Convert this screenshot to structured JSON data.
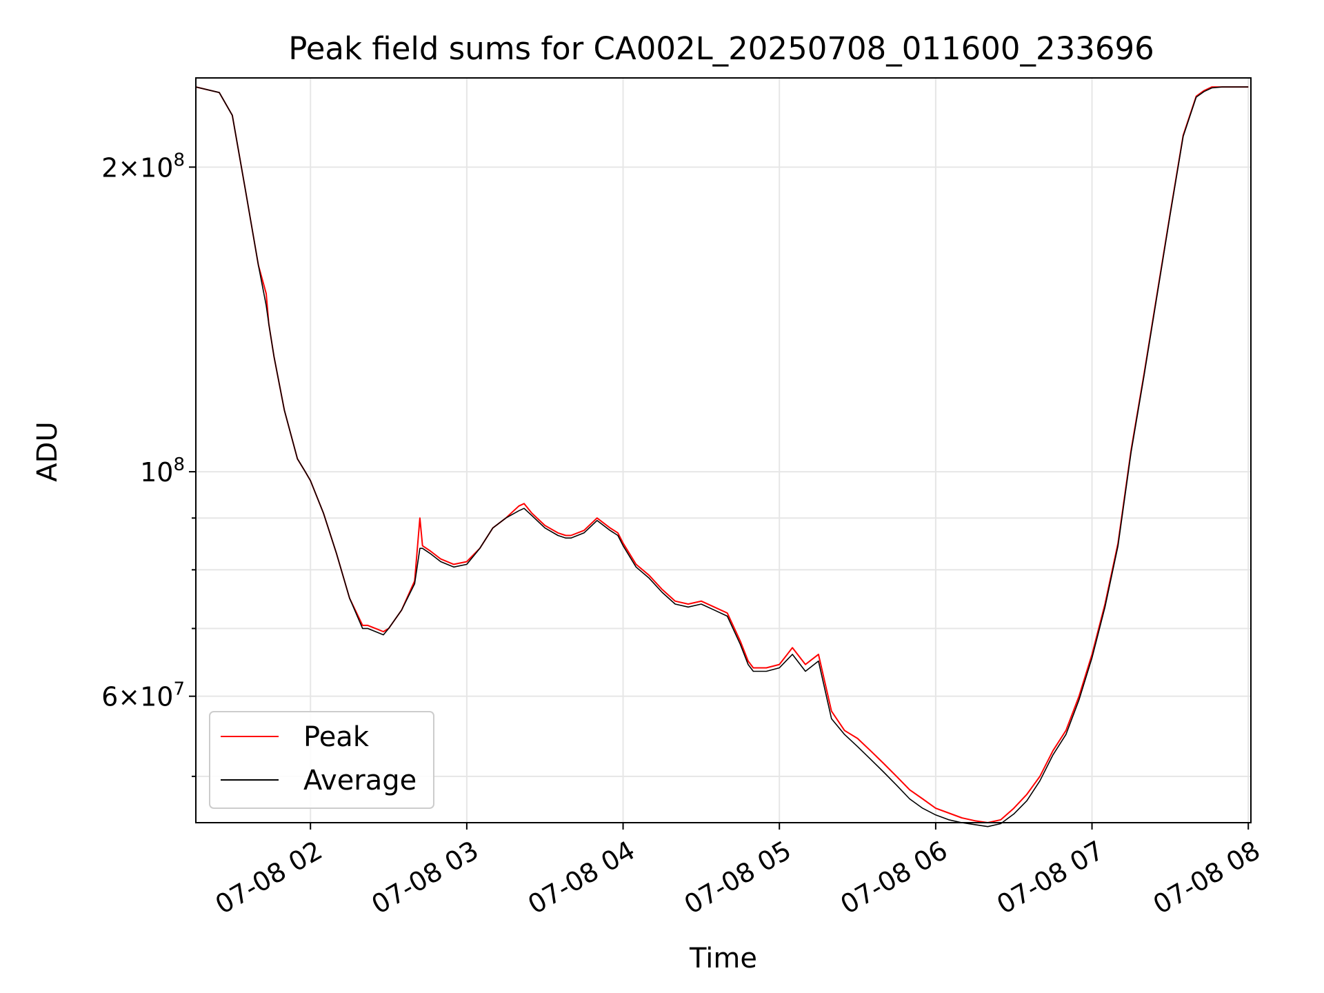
{
  "chart_data": {
    "type": "line",
    "title": "Peak field sums for CA002L_20250708_011600_233696",
    "xlabel": "Time",
    "ylabel": "ADU",
    "yscale": "log",
    "ylim": [
      45000000,
      245000000
    ],
    "xlim": [
      "07-08 01:16",
      "07-08 08:01"
    ],
    "x_tick_labels": [
      "07-08 02",
      "07-08 03",
      "07-08 04",
      "07-08 05",
      "07-08 06",
      "07-08 07",
      "07-08 08"
    ],
    "y_tick_labels": [
      {
        "base": "2",
        "exp": "8",
        "value": 200000000,
        "kind": "mantissa"
      },
      {
        "base": "10",
        "exp": "8",
        "value": 100000000,
        "kind": "power"
      },
      {
        "base": "6",
        "exp": "7",
        "value": 60000000,
        "kind": "mantissa"
      }
    ],
    "y_minor_ticks": [
      50000000,
      70000000,
      80000000,
      90000000
    ],
    "grid": true,
    "legend_position": "lower-left",
    "series": [
      {
        "name": "Peak",
        "color": "#ff0000",
        "x": [
          "01:16",
          "01:25",
          "01:30",
          "01:35",
          "01:40",
          "01:43",
          "01:44",
          "01:46",
          "01:50",
          "01:55",
          "01:58",
          "02:00",
          "02:05",
          "02:10",
          "02:15",
          "02:20",
          "02:22",
          "02:25",
          "02:28",
          "02:30",
          "02:35",
          "02:40",
          "02:42",
          "02:43",
          "02:46",
          "02:50",
          "02:55",
          "03:00",
          "03:05",
          "03:10",
          "03:15",
          "03:20",
          "03:22",
          "03:25",
          "03:30",
          "03:35",
          "03:38",
          "03:40",
          "03:45",
          "03:50",
          "03:55",
          "03:58",
          "04:00",
          "04:05",
          "04:10",
          "04:15",
          "04:20",
          "04:25",
          "04:30",
          "04:35",
          "04:40",
          "04:45",
          "04:48",
          "04:50",
          "04:55",
          "05:00",
          "05:05",
          "05:10",
          "05:15",
          "05:20",
          "05:25",
          "05:30",
          "05:35",
          "05:40",
          "05:45",
          "05:50",
          "05:55",
          "06:00",
          "06:05",
          "06:10",
          "06:15",
          "06:20",
          "06:25",
          "06:30",
          "06:35",
          "06:40",
          "06:45",
          "06:50",
          "06:55",
          "07:00",
          "07:05",
          "07:10",
          "07:15",
          "07:20",
          "07:25",
          "07:30",
          "07:35",
          "07:40",
          "07:43",
          "07:46",
          "07:50",
          "08:00"
        ],
        "values": [
          240000000,
          237000000,
          225000000,
          190000000,
          160000000,
          150000000,
          140000000,
          130000000,
          115000000,
          103000000,
          100000000,
          98000000,
          91000000,
          83000000,
          75000000,
          70500000,
          70500000,
          70000000,
          69500000,
          70000000,
          73000000,
          78000000,
          90000000,
          84500000,
          83500000,
          82000000,
          81000000,
          81500000,
          84000000,
          88000000,
          90000000,
          92500000,
          93000000,
          91000000,
          88500000,
          87000000,
          86500000,
          86500000,
          87500000,
          90000000,
          88000000,
          87000000,
          85000000,
          81000000,
          79000000,
          76500000,
          74500000,
          74000000,
          74500000,
          73500000,
          72500000,
          68000000,
          65000000,
          64000000,
          64000000,
          64500000,
          67000000,
          64500000,
          66000000,
          58000000,
          55500000,
          54500000,
          53000000,
          51500000,
          50000000,
          48500000,
          47500000,
          46500000,
          46000000,
          45500000,
          45200000,
          45000000,
          45300000,
          46500000,
          48000000,
          50000000,
          53000000,
          55500000,
          60000000,
          66000000,
          74000000,
          85000000,
          105000000,
          125000000,
          150000000,
          180000000,
          215000000,
          235000000,
          238000000,
          240000000,
          240000000,
          240000000
        ]
      },
      {
        "name": "Average",
        "color": "#000000",
        "x": [
          "01:16",
          "01:25",
          "01:30",
          "01:35",
          "01:40",
          "01:43",
          "01:44",
          "01:46",
          "01:50",
          "01:55",
          "01:58",
          "02:00",
          "02:05",
          "02:10",
          "02:15",
          "02:20",
          "02:22",
          "02:25",
          "02:28",
          "02:30",
          "02:35",
          "02:40",
          "02:42",
          "02:43",
          "02:46",
          "02:50",
          "02:55",
          "03:00",
          "03:05",
          "03:10",
          "03:15",
          "03:20",
          "03:22",
          "03:25",
          "03:30",
          "03:35",
          "03:38",
          "03:40",
          "03:45",
          "03:50",
          "03:55",
          "03:58",
          "04:00",
          "04:05",
          "04:10",
          "04:15",
          "04:20",
          "04:25",
          "04:30",
          "04:35",
          "04:40",
          "04:45",
          "04:48",
          "04:50",
          "04:55",
          "05:00",
          "05:05",
          "05:10",
          "05:15",
          "05:20",
          "05:25",
          "05:30",
          "05:35",
          "05:40",
          "05:45",
          "05:50",
          "05:55",
          "06:00",
          "06:05",
          "06:10",
          "06:15",
          "06:20",
          "06:25",
          "06:30",
          "06:35",
          "06:40",
          "06:45",
          "06:50",
          "06:55",
          "07:00",
          "07:05",
          "07:10",
          "07:15",
          "07:20",
          "07:25",
          "07:30",
          "07:35",
          "07:40",
          "07:43",
          "07:46",
          "07:50",
          "08:00"
        ],
        "values": [
          240000000,
          237000000,
          225000000,
          190000000,
          160000000,
          146000000,
          140000000,
          130000000,
          115000000,
          103000000,
          100000000,
          98000000,
          91000000,
          83000000,
          75000000,
          70000000,
          70000000,
          69500000,
          69000000,
          70000000,
          73000000,
          77500000,
          84000000,
          84000000,
          83000000,
          81500000,
          80500000,
          81000000,
          84000000,
          88000000,
          90000000,
          91500000,
          92000000,
          90500000,
          88000000,
          86500000,
          86000000,
          86000000,
          87000000,
          89500000,
          87500000,
          86500000,
          84500000,
          80500000,
          78500000,
          76000000,
          74000000,
          73500000,
          74000000,
          73000000,
          72000000,
          67500000,
          64500000,
          63500000,
          63500000,
          64000000,
          66000000,
          63500000,
          65000000,
          57000000,
          55000000,
          53500000,
          52000000,
          50500000,
          49000000,
          47500000,
          46500000,
          45800000,
          45300000,
          45000000,
          44800000,
          44600000,
          44900000,
          45900000,
          47300000,
          49500000,
          52500000,
          55000000,
          59500000,
          65500000,
          73500000,
          84500000,
          104500000,
          124500000,
          149500000,
          179500000,
          214500000,
          234500000,
          237500000,
          239500000,
          240000000,
          240000000
        ]
      }
    ]
  }
}
